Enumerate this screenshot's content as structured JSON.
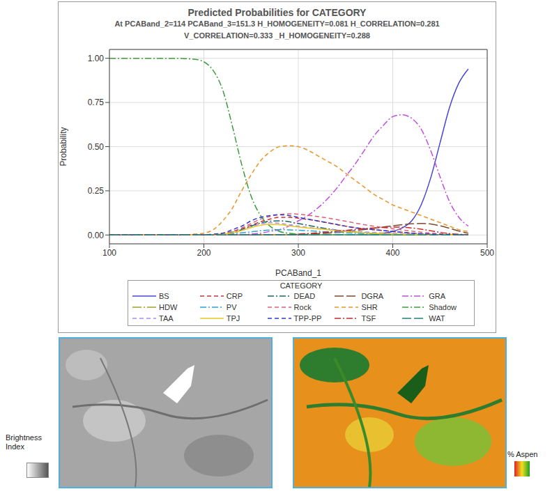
{
  "chart_data": {
    "type": "line",
    "title": "Predicted Probabilities for CATEGORY",
    "subtitle": [
      "At PCABand_2=114 PCABand_3=151.3 H_HOMOGENEITY=0.081 H_CORRELATION=0.281",
      "V_CORRELATION=0.333 _H_HOMOGENEITY=0.288"
    ],
    "x_label": "PCABand_1",
    "y_label": "Probability",
    "legend_title": "CATEGORY",
    "legend": "bottom",
    "grid": true,
    "xlim": [
      100,
      500
    ],
    "xticks": [
      100,
      200,
      300,
      400,
      500
    ],
    "ylim": [
      -0.05,
      1.05
    ],
    "yticks": [
      {
        "value": 0,
        "label": "0.00"
      },
      {
        "value": 0.25,
        "label": "0.25"
      },
      {
        "value": 0.5,
        "label": "0.50"
      },
      {
        "value": 0.75,
        "label": "0.75"
      },
      {
        "value": 1,
        "label": "1.00"
      }
    ],
    "x": [
      100,
      110,
      120,
      130,
      140,
      150,
      160,
      170,
      180,
      190,
      200,
      210,
      220,
      230,
      240,
      250,
      260,
      270,
      280,
      290,
      300,
      310,
      320,
      330,
      340,
      350,
      360,
      370,
      380,
      390,
      400,
      410,
      420,
      430,
      440,
      450,
      460,
      470,
      480
    ],
    "series": [
      {
        "name": "BS",
        "color": "#4646d8",
        "line_style": "solid",
        "values": [
          0,
          0,
          0,
          0,
          0,
          0,
          0,
          0,
          0,
          0,
          0,
          0,
          0,
          0,
          0,
          0,
          0,
          0,
          0,
          0,
          0,
          0,
          0,
          0,
          0,
          0,
          0,
          0,
          0,
          0.01,
          0.02,
          0.04,
          0.08,
          0.17,
          0.32,
          0.52,
          0.72,
          0.86,
          0.94
        ]
      },
      {
        "name": "CRP",
        "color": "#c83232",
        "line_style": "dashed",
        "values": [
          0,
          0,
          0,
          0,
          0,
          0,
          0,
          0,
          0,
          0,
          0,
          0.002,
          0.008,
          0.02,
          0.035,
          0.055,
          0.075,
          0.09,
          0.1,
          0.1,
          0.095,
          0.088,
          0.08,
          0.07,
          0.06,
          0.05,
          0.042,
          0.035,
          0.03,
          0.025,
          0.02,
          0.015,
          0.01,
          0.007,
          0.005,
          0.003,
          0.002,
          0.001,
          0
        ]
      },
      {
        "name": "DEAD",
        "color": "#1e6464",
        "line_style": "dashdot",
        "values": [
          0,
          0,
          0,
          0,
          0,
          0,
          0,
          0,
          0,
          0,
          0,
          0.002,
          0.006,
          0.015,
          0.03,
          0.05,
          0.068,
          0.078,
          0.08,
          0.075,
          0.065,
          0.055,
          0.045,
          0.036,
          0.028,
          0.021,
          0.016,
          0.012,
          0.009,
          0.006,
          0.004,
          0.003,
          0.002,
          0.001,
          0,
          0,
          0,
          0,
          0
        ]
      },
      {
        "name": "DGRA",
        "color": "#7a4a2a",
        "line_style": "longdash",
        "values": [
          0,
          0,
          0,
          0,
          0,
          0,
          0,
          0,
          0,
          0,
          0,
          0,
          0,
          0,
          0,
          0,
          0,
          0,
          0,
          0,
          0.002,
          0.004,
          0.007,
          0.01,
          0.014,
          0.019,
          0.025,
          0.031,
          0.038,
          0.045,
          0.052,
          0.058,
          0.063,
          0.065,
          0.062,
          0.052,
          0.038,
          0.022,
          0.01
        ]
      },
      {
        "name": "GRA",
        "color": "#c04ee0",
        "line_style": "dashdot",
        "values": [
          0,
          0,
          0,
          0,
          0,
          0,
          0,
          0,
          0,
          0,
          0,
          0,
          0,
          0,
          0.002,
          0.005,
          0.01,
          0.02,
          0.03,
          0.05,
          0.08,
          0.11,
          0.15,
          0.2,
          0.26,
          0.33,
          0.4,
          0.48,
          0.56,
          0.62,
          0.67,
          0.68,
          0.66,
          0.6,
          0.48,
          0.33,
          0.19,
          0.1,
          0.05
        ]
      },
      {
        "name": "HDW",
        "color": "#a0a028",
        "line_style": "longdashdot",
        "values": [
          0,
          0,
          0,
          0,
          0,
          0,
          0,
          0,
          0,
          0,
          0,
          0,
          0,
          0,
          0,
          0,
          0,
          0,
          0,
          0,
          0,
          0,
          0,
          0,
          0,
          0,
          0,
          0,
          0,
          0,
          0,
          0,
          0,
          0,
          0,
          0,
          0,
          0,
          0
        ]
      },
      {
        "name": "PV",
        "color": "#2aa0dc",
        "line_style": "dashdot",
        "values": [
          0,
          0,
          0,
          0,
          0,
          0,
          0,
          0,
          0,
          0,
          0,
          0.001,
          0.003,
          0.007,
          0.012,
          0.018,
          0.024,
          0.028,
          0.03,
          0.029,
          0.027,
          0.024,
          0.021,
          0.018,
          0.015,
          0.012,
          0.01,
          0.008,
          0.006,
          0.005,
          0.004,
          0.003,
          0.002,
          0.001,
          0.001,
          0,
          0,
          0,
          0
        ]
      },
      {
        "name": "Rock",
        "color": "#e0607a",
        "line_style": "dashed",
        "values": [
          0,
          0,
          0,
          0,
          0,
          0,
          0,
          0,
          0,
          0,
          0,
          0.003,
          0.01,
          0.02,
          0.04,
          0.065,
          0.09,
          0.105,
          0.115,
          0.12,
          0.118,
          0.112,
          0.105,
          0.097,
          0.088,
          0.078,
          0.068,
          0.058,
          0.05,
          0.042,
          0.035,
          0.028,
          0.022,
          0.016,
          0.011,
          0.007,
          0.004,
          0.002,
          0.001
        ]
      },
      {
        "name": "SHR",
        "color": "#e8962e",
        "line_style": "dashed",
        "values": [
          0,
          0,
          0,
          0,
          0,
          0,
          0,
          0,
          0,
          0.005,
          0.01,
          0.03,
          0.08,
          0.15,
          0.25,
          0.34,
          0.42,
          0.47,
          0.5,
          0.505,
          0.5,
          0.48,
          0.45,
          0.42,
          0.39,
          0.35,
          0.31,
          0.27,
          0.23,
          0.2,
          0.17,
          0.15,
          0.13,
          0.11,
          0.09,
          0.07,
          0.05,
          0.03,
          0.02
        ]
      },
      {
        "name": "Shadow",
        "color": "#3c9c3c",
        "line_style": "dashdot",
        "values": [
          1,
          1,
          1,
          1,
          1,
          1,
          1,
          1,
          0.998,
          0.995,
          0.98,
          0.93,
          0.82,
          0.62,
          0.4,
          0.22,
          0.11,
          0.05,
          0.02,
          0.01,
          0.005,
          0,
          0,
          0,
          0,
          0,
          0,
          0,
          0,
          0,
          0,
          0,
          0,
          0,
          0,
          0,
          0,
          0,
          0
        ]
      },
      {
        "name": "TAA",
        "color": "#a48ee6",
        "line_style": "dashed",
        "values": [
          0,
          0,
          0,
          0,
          0,
          0,
          0,
          0,
          0,
          0,
          0,
          0.002,
          0.005,
          0.012,
          0.025,
          0.045,
          0.062,
          0.07,
          0.066,
          0.058,
          0.05,
          0.043,
          0.037,
          0.032,
          0.028,
          0.024,
          0.02,
          0.017,
          0.014,
          0.011,
          0.009,
          0.007,
          0.005,
          0.004,
          0.003,
          0.002,
          0.001,
          0.001,
          0
        ]
      },
      {
        "name": "TPJ",
        "color": "#e8c81e",
        "line_style": "solid",
        "values": [
          0,
          0,
          0,
          0,
          0,
          0,
          0,
          0,
          0,
          0,
          0,
          0.002,
          0.005,
          0.012,
          0.025,
          0.042,
          0.055,
          0.06,
          0.058,
          0.052,
          0.046,
          0.04,
          0.035,
          0.03,
          0.025,
          0.02,
          0.016,
          0.012,
          0.009,
          0.007,
          0.005,
          0.004,
          0.003,
          0.002,
          0.001,
          0,
          0,
          0,
          0
        ]
      },
      {
        "name": "TPP-PP",
        "color": "#2c3cc8",
        "line_style": "dashed",
        "values": [
          0,
          0,
          0,
          0,
          0,
          0,
          0,
          0,
          0,
          0,
          0,
          0.005,
          0.01,
          0.03,
          0.05,
          0.08,
          0.1,
          0.11,
          0.115,
          0.11,
          0.1,
          0.09,
          0.08,
          0.07,
          0.06,
          0.05,
          0.04,
          0.035,
          0.03,
          0.025,
          0.02,
          0.015,
          0.01,
          0.007,
          0.005,
          0.003,
          0.002,
          0.001,
          0
        ]
      },
      {
        "name": "TSF",
        "color": "#c82828",
        "line_style": "dashdot",
        "values": [
          0,
          0,
          0,
          0,
          0,
          0,
          0,
          0,
          0,
          0,
          0,
          0,
          0,
          0,
          0,
          0,
          0,
          0,
          0,
          0,
          0.005,
          0.008,
          0.012,
          0.016,
          0.021,
          0.026,
          0.031,
          0.036,
          0.04,
          0.043,
          0.045,
          0.044,
          0.04,
          0.033,
          0.024,
          0.015,
          0.008,
          0.004,
          0.002
        ]
      },
      {
        "name": "WAT",
        "color": "#1e8080",
        "line_style": "longdash",
        "values": [
          0,
          0,
          0,
          0,
          0,
          0,
          0,
          0,
          0,
          0,
          0,
          0,
          0,
          0,
          0,
          0,
          0,
          0,
          0,
          0,
          0,
          0,
          0,
          0,
          0,
          0,
          0,
          0,
          0,
          0,
          0,
          0,
          0,
          0,
          0,
          0,
          0,
          0,
          0
        ]
      }
    ]
  },
  "images": [
    {
      "legend_label": "Brightness Index"
    },
    {
      "legend_label": "% Aspen"
    }
  ]
}
